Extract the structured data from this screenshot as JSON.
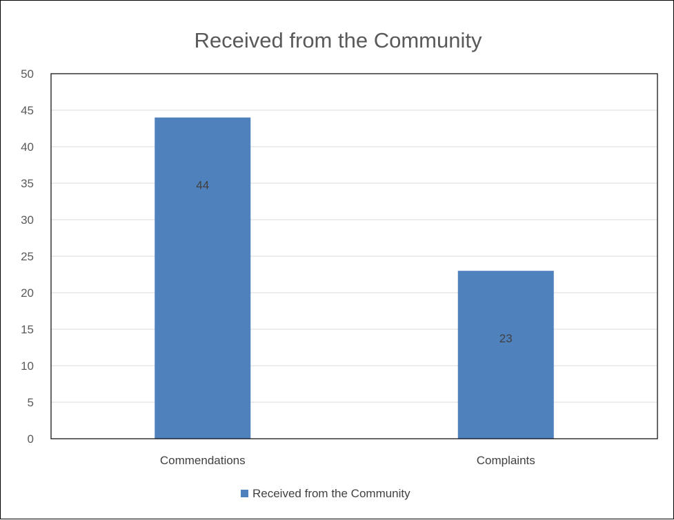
{
  "chart_data": {
    "type": "bar",
    "title": "Received from the Community",
    "categories": [
      "Commendations",
      "Complaints"
    ],
    "series": [
      {
        "name": "Received from the Community",
        "values": [
          44,
          23
        ],
        "color": "#4f81bd"
      }
    ],
    "data_labels": [
      "44",
      "23"
    ],
    "ylim": [
      0,
      50
    ],
    "y_ticks": [
      "0",
      "5",
      "10",
      "15",
      "20",
      "25",
      "30",
      "35",
      "40",
      "45",
      "50"
    ],
    "xlabel": "",
    "ylabel": "",
    "grid": true,
    "legend_position": "bottom",
    "colors": {
      "grid": "#d9d9d9",
      "axis": "#000000",
      "text": "#595959"
    }
  }
}
